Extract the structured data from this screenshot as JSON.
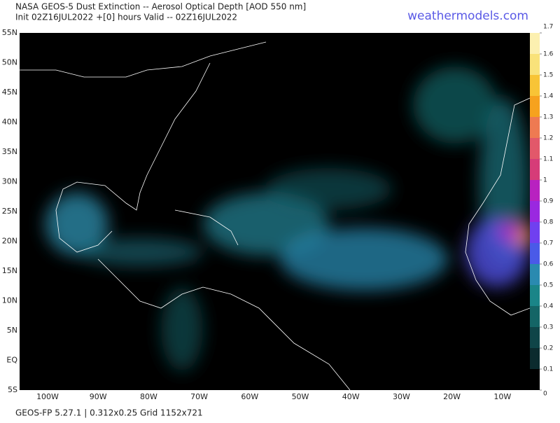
{
  "header": {
    "title": "NASA GEOS-5 Dust Extinction -- Aerosol Optical Depth [AOD 550 nm]",
    "subtitle": "Init 02Z16JUL2022 +[0] hours Valid -- 02Z16JUL2022",
    "site": "weathermodels.com"
  },
  "map": {
    "lat_labels": [
      "55N",
      "50N",
      "45N",
      "40N",
      "35N",
      "30N",
      "25N",
      "20N",
      "15N",
      "10N",
      "5N",
      "EQ",
      "5S"
    ],
    "lon_labels": [
      "100W",
      "90W",
      "80W",
      "70W",
      "60W",
      "50W",
      "40W",
      "30W",
      "20W",
      "10W"
    ]
  },
  "colorbar": {
    "ticks": [
      0,
      0.1,
      0.2,
      0.3,
      0.4,
      0.5,
      0.6,
      0.7,
      0.8,
      0.9,
      1,
      1.1,
      1.2,
      1.3,
      1.4,
      1.5,
      1.6,
      1.7
    ],
    "colors": [
      "#000000",
      "#0b2b2e",
      "#0f4548",
      "#146566",
      "#1a8588",
      "#2a8ab0",
      "#4a5ae8",
      "#7040f0",
      "#9a28e0",
      "#b822c0",
      "#d63c78",
      "#e2586a",
      "#ee7a52",
      "#f6a21e",
      "#f8c436",
      "#f9e27a",
      "#fcf0b0"
    ]
  },
  "footer": {
    "text": "GEOS-FP 5.27.1 | 0.312x0.25 Grid 1152x721"
  }
}
